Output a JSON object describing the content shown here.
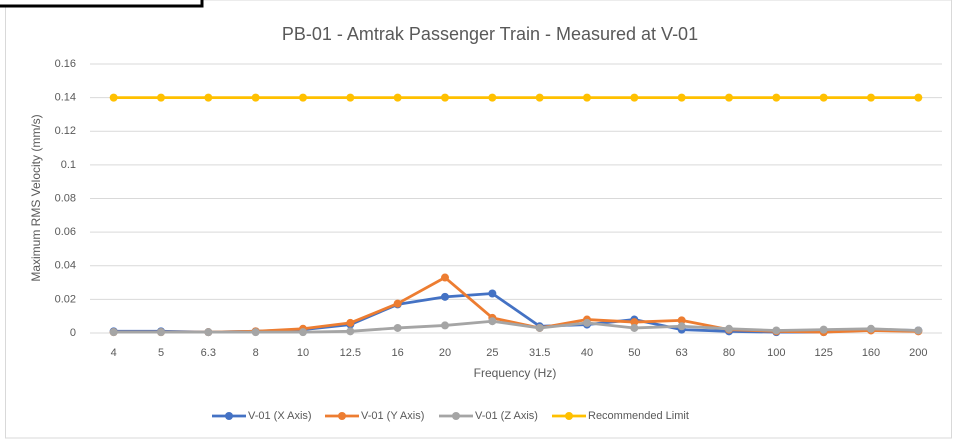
{
  "chart_data": {
    "type": "line",
    "title": "PB-01 - Amtrak Passenger Train - Measured at V-01",
    "x_label": "Frequency (Hz)",
    "y_label": "Maximum RMS Velocity (mm/s)",
    "categories": [
      "4",
      "5",
      "6.3",
      "8",
      "10",
      "12.5",
      "16",
      "20",
      "25",
      "31.5",
      "40",
      "50",
      "63",
      "80",
      "100",
      "125",
      "160",
      "200"
    ],
    "series": [
      {
        "name": "V-01 (X Axis)",
        "color": "#4472c4",
        "values": [
          0.001,
          0.001,
          0.0005,
          0.001,
          0.002,
          0.005,
          0.017,
          0.0215,
          0.0235,
          0.004,
          0.005,
          0.008,
          0.002,
          0.001,
          0.0005,
          0.0005,
          0.002,
          0.0015
        ]
      },
      {
        "name": "V-01 (Y Axis)",
        "color": "#ed7d31",
        "values": [
          0.0005,
          0.0005,
          0.0005,
          0.001,
          0.0025,
          0.006,
          0.0175,
          0.033,
          0.009,
          0.003,
          0.008,
          0.0065,
          0.0075,
          0.002,
          0.001,
          0.0005,
          0.0015,
          0.001
        ]
      },
      {
        "name": "V-01 (Z Axis)",
        "color": "#a5a5a5",
        "values": [
          0.0005,
          0.0005,
          0.0005,
          0.0005,
          0.0005,
          0.001,
          0.003,
          0.0045,
          0.007,
          0.003,
          0.006,
          0.003,
          0.004,
          0.0025,
          0.0015,
          0.002,
          0.0025,
          0.0015
        ]
      },
      {
        "name": "Recommended Limit",
        "color": "#ffc000",
        "values": [
          0.14,
          0.14,
          0.14,
          0.14,
          0.14,
          0.14,
          0.14,
          0.14,
          0.14,
          0.14,
          0.14,
          0.14,
          0.14,
          0.14,
          0.14,
          0.14,
          0.14,
          0.14
        ]
      }
    ],
    "ylim": [
      0,
      0.16
    ],
    "yticks": [
      0,
      0.02,
      0.04,
      0.06,
      0.08,
      0.1,
      0.12,
      0.14,
      0.16
    ],
    "grid": true,
    "legend": "bottom"
  }
}
